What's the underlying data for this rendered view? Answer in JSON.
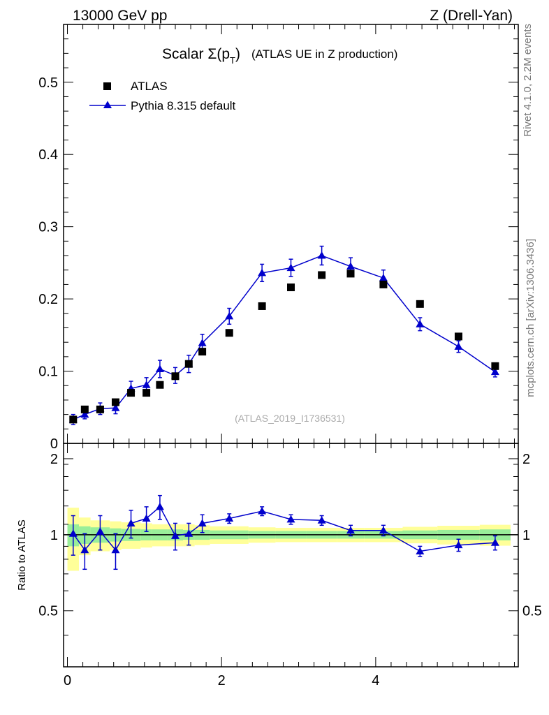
{
  "header": {
    "left": "13000 GeV pp",
    "right": "Z (Drell-Yan)"
  },
  "side_labels": {
    "rivet": "Rivet 4.1.0,  2.2M events",
    "mcplots": "mcplots.cern.ch [arXiv:1306.3436]"
  },
  "colors": {
    "data": "#000000",
    "mc": "#0000cc",
    "band_inner": "#99ee99",
    "band_outer": "#ffff99"
  },
  "chart_data": [
    {
      "type": "scatter",
      "title_prefix": "Scalar ",
      "title_sigma": "Σ(p",
      "title_sub": "T",
      "title_close": ")",
      "title_suffix": "(ATLAS UE in Z production)",
      "watermark": "(ATLAS_2019_I1736531)",
      "xlim": [
        -0.05,
        5.85
      ],
      "ylim": [
        0,
        0.58
      ],
      "y_ticks": [
        0,
        0.1,
        0.2,
        0.3,
        0.4,
        0.5
      ],
      "y_tick_labels": [
        "0",
        "0.1",
        "0.2",
        "0.3",
        "0.4",
        "0.5"
      ],
      "series": [
        {
          "name": "ATLAS",
          "marker": "square",
          "x": [
            0.075,
            0.225,
            0.425,
            0.625,
            0.825,
            1.025,
            1.2,
            1.4,
            1.575,
            1.75,
            2.1,
            2.525,
            2.9,
            3.3,
            3.675,
            4.1,
            4.575,
            5.075,
            5.55
          ],
          "y": [
            0.033,
            0.047,
            0.047,
            0.057,
            0.07,
            0.07,
            0.081,
            0.093,
            0.11,
            0.127,
            0.153,
            0.19,
            0.216,
            0.233,
            0.235,
            0.22,
            0.193,
            0.148,
            0.107
          ]
        },
        {
          "name": "Pythia 8.315 default",
          "marker": "triangle",
          "x": [
            0.075,
            0.225,
            0.425,
            0.625,
            0.825,
            1.025,
            1.2,
            1.4,
            1.575,
            1.75,
            2.1,
            2.525,
            2.9,
            3.3,
            3.675,
            4.1,
            4.575,
            5.075,
            5.55
          ],
          "y": [
            0.033,
            0.04,
            0.048,
            0.049,
            0.076,
            0.081,
            0.103,
            0.094,
            0.11,
            0.139,
            0.176,
            0.236,
            0.243,
            0.26,
            0.245,
            0.229,
            0.165,
            0.134,
            0.099
          ],
          "err": [
            0.007,
            0.006,
            0.008,
            0.008,
            0.01,
            0.01,
            0.012,
            0.011,
            0.012,
            0.012,
            0.011,
            0.012,
            0.012,
            0.013,
            0.012,
            0.011,
            0.009,
            0.008,
            0.007
          ]
        }
      ]
    },
    {
      "type": "line",
      "ylabel": "Ratio to ATLAS",
      "xlim": [
        -0.05,
        5.85
      ],
      "ylim": [
        0.3,
        2.3
      ],
      "x_ticks": [
        0,
        2,
        4
      ],
      "x_tick_labels": [
        "0",
        "2",
        "4"
      ],
      "y_ticks": [
        0.5,
        1,
        2
      ],
      "y_tick_labels": [
        "0.5",
        "1",
        "2"
      ],
      "bins": [
        0,
        0.15,
        0.3,
        0.55,
        0.7,
        0.95,
        1.1,
        1.3,
        1.5,
        1.65,
        1.85,
        2.35,
        2.7,
        3.1,
        3.5,
        3.85,
        4.35,
        4.8,
        5.35,
        5.75
      ],
      "band_inner": [
        0.1,
        0.08,
        0.07,
        0.06,
        0.055,
        0.05,
        0.05,
        0.05,
        0.045,
        0.045,
        0.04,
        0.035,
        0.035,
        0.035,
        0.035,
        0.035,
        0.04,
        0.045,
        0.05
      ],
      "band_outer": [
        0.28,
        0.17,
        0.14,
        0.13,
        0.12,
        0.11,
        0.1,
        0.1,
        0.1,
        0.09,
        0.08,
        0.07,
        0.065,
        0.065,
        0.065,
        0.065,
        0.075,
        0.085,
        0.095
      ],
      "series": [
        {
          "name": "Pythia 8.315 default / ATLAS",
          "x": [
            0.075,
            0.225,
            0.425,
            0.625,
            0.825,
            1.025,
            1.2,
            1.4,
            1.575,
            1.75,
            2.1,
            2.525,
            2.9,
            3.3,
            3.675,
            4.1,
            4.575,
            5.075,
            5.55
          ],
          "y": [
            1.01,
            0.87,
            1.03,
            0.87,
            1.11,
            1.16,
            1.29,
            0.99,
            1.01,
            1.11,
            1.16,
            1.24,
            1.15,
            1.14,
            1.04,
            1.04,
            0.86,
            0.91,
            0.93
          ],
          "err": [
            0.18,
            0.14,
            0.16,
            0.14,
            0.14,
            0.13,
            0.14,
            0.12,
            0.1,
            0.09,
            0.05,
            0.05,
            0.05,
            0.05,
            0.05,
            0.05,
            0.04,
            0.05,
            0.06
          ]
        }
      ]
    }
  ]
}
